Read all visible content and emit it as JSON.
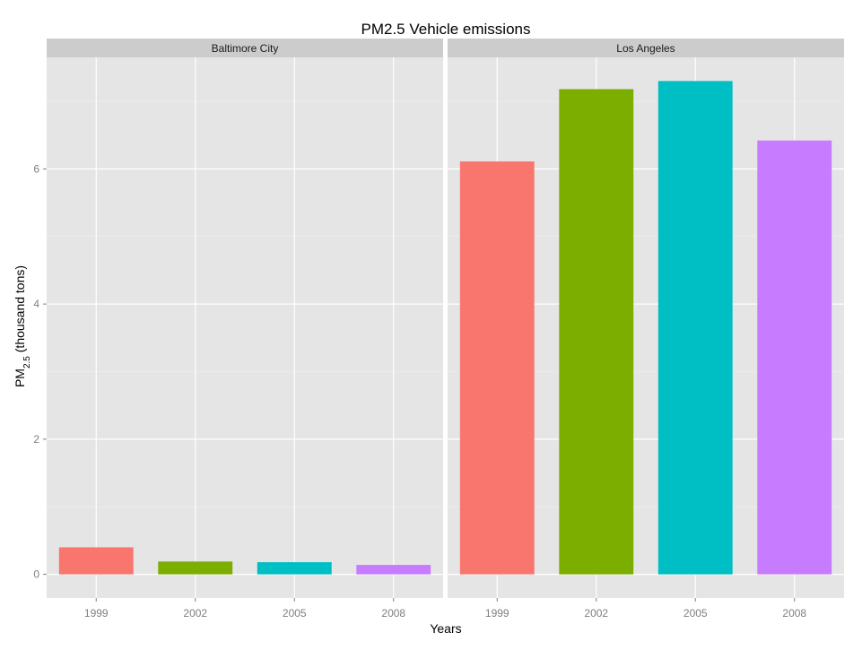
{
  "chart_data": {
    "type": "bar",
    "title": "PM2.5 Vehicle emissions",
    "xlabel": "Years",
    "ylabel_main": "PM",
    "ylabel_sub": "2.5",
    "ylabel_rest": " (thousand tons)",
    "ylim": [
      -0.35,
      7.65
    ],
    "yticks": [
      0,
      2,
      4,
      6
    ],
    "ytick_labels": [
      "0",
      "2",
      "4",
      "6"
    ],
    "grid": true,
    "legend": "none",
    "categories": [
      "1999",
      "2002",
      "2005",
      "2008"
    ],
    "colors": [
      "#F8766D",
      "#7CAE00",
      "#00BFC4",
      "#C77CFF"
    ],
    "panels": [
      {
        "name": "Baltimore City",
        "values": [
          0.4,
          0.19,
          0.18,
          0.14
        ]
      },
      {
        "name": "Los Angeles",
        "values": [
          6.11,
          7.18,
          7.3,
          6.42
        ]
      }
    ]
  }
}
